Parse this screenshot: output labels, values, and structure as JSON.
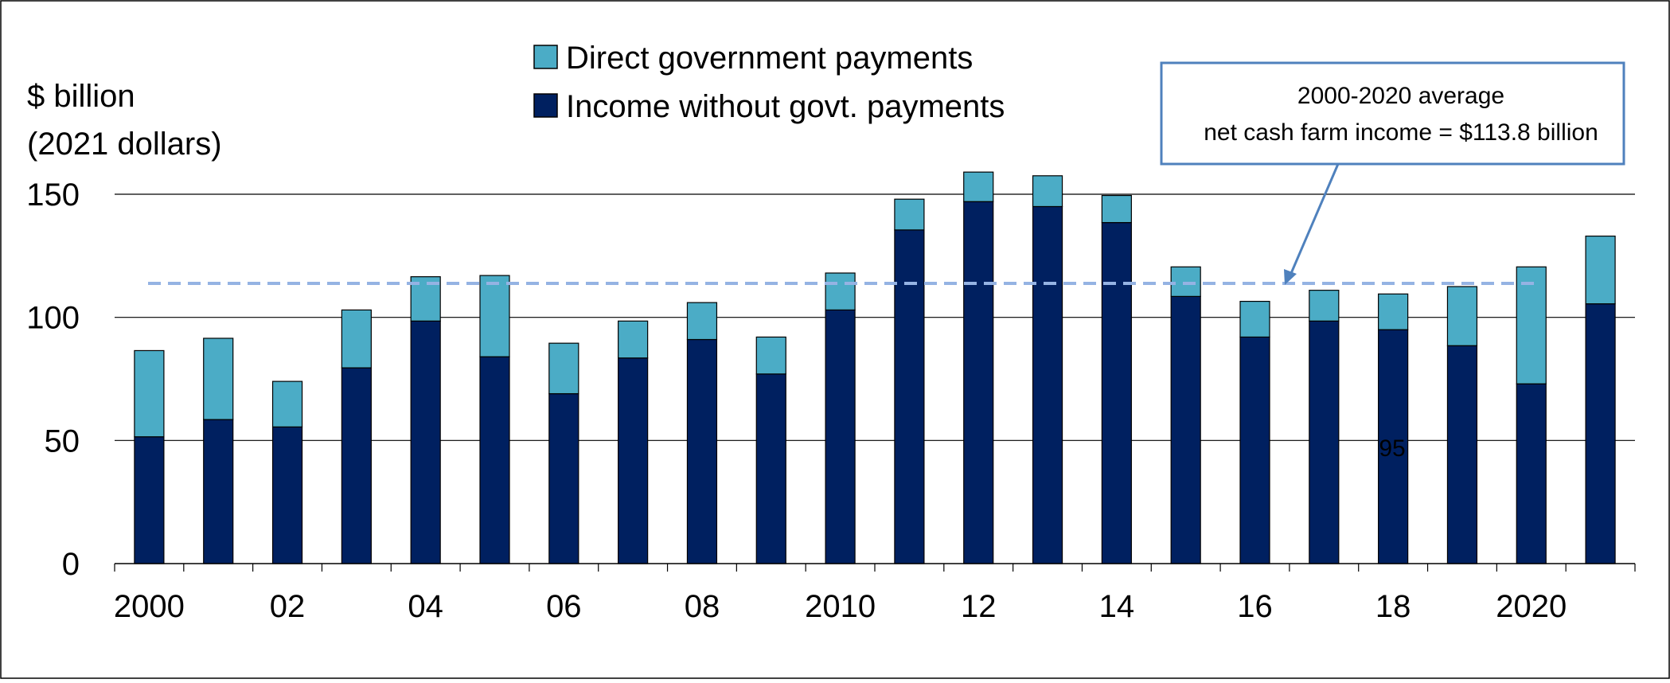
{
  "colors": {
    "income_without_govt": "#002060",
    "direct_govt_payments": "#4BACC6",
    "average_line": "#95B3E3",
    "callout_border": "#4F81BD",
    "gridline": "#000000"
  },
  "chart_data": {
    "type": "bar",
    "stacked": true,
    "ylabel_line1": "$ billion",
    "ylabel_line2": "(2021 dollars)",
    "ylim": [
      0,
      150
    ],
    "yticks": [
      0,
      50,
      100,
      150
    ],
    "grid": true,
    "legend_position": "top-center",
    "categories": [
      "2000",
      "2001",
      "2002",
      "2003",
      "2004",
      "2005",
      "2006",
      "2007",
      "2008",
      "2009",
      "2010",
      "2011",
      "2012",
      "2013",
      "2014",
      "2015",
      "2016",
      "2017",
      "2018",
      "2019",
      "2020",
      "2021"
    ],
    "tick_labels": [
      "2000",
      "",
      "02",
      "",
      "04",
      "",
      "06",
      "",
      "08",
      "",
      "2010",
      "",
      "12",
      "",
      "14",
      "",
      "16",
      "",
      "18",
      "",
      "2020",
      ""
    ],
    "series": [
      {
        "name": "Income without govt. payments",
        "values": [
          51.5,
          58.5,
          55.5,
          79.5,
          98.5,
          84,
          69,
          83.5,
          91,
          77,
          103,
          135.5,
          147,
          145,
          138.5,
          108.5,
          92,
          98.5,
          95,
          88.5,
          73,
          105.5
        ]
      },
      {
        "name": "Direct government payments",
        "values": [
          35,
          33,
          18.5,
          23.5,
          18,
          33,
          20.5,
          15,
          15,
          15,
          15,
          12.5,
          12,
          12.5,
          11,
          12,
          14.5,
          12.5,
          14.5,
          24,
          47.5,
          27.5
        ]
      }
    ],
    "average_value": 113.8,
    "annotation_line1": "2000-2020 average",
    "annotation_line2": "net cash farm income = $113.8 billion",
    "stray_label": "95"
  }
}
